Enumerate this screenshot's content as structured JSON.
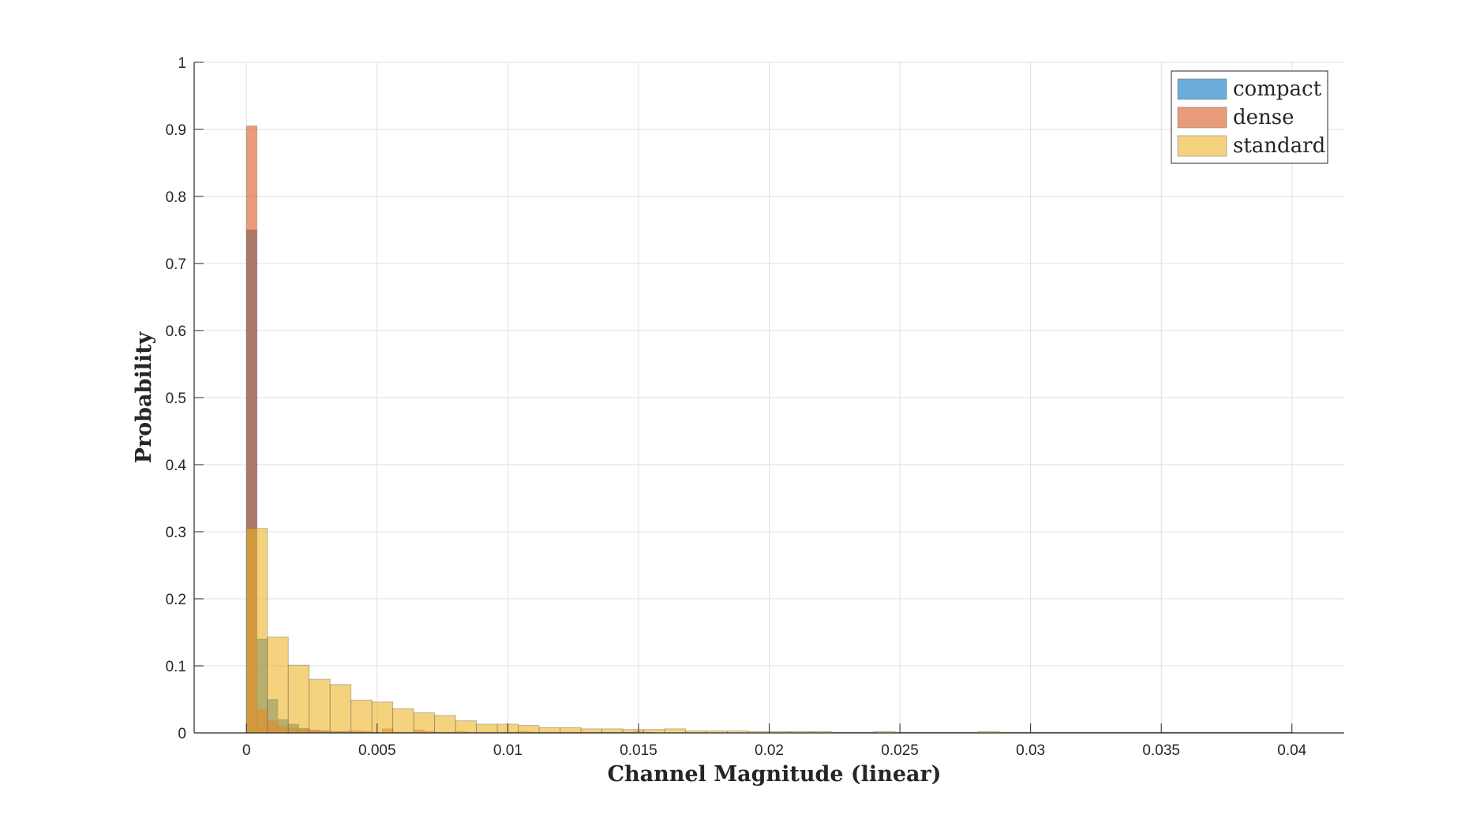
{
  "chart_data": {
    "type": "bar",
    "title": "",
    "xlabel": "Channel Magnitude (linear)",
    "ylabel": "Probability",
    "xlim": [
      -0.002,
      0.042
    ],
    "ylim": [
      0,
      1
    ],
    "xticks": [
      0,
      0.005,
      0.01,
      0.015,
      0.02,
      0.025,
      0.03,
      0.035,
      0.04
    ],
    "xtick_labels": [
      "0",
      "0.005",
      "0.01",
      "0.015",
      "0.02",
      "0.025",
      "0.03",
      "0.035",
      "0.04"
    ],
    "yticks": [
      0,
      0.1,
      0.2,
      0.3,
      0.4,
      0.5,
      0.6,
      0.7,
      0.8,
      0.9,
      1
    ],
    "ytick_labels": [
      "0",
      "0.1",
      "0.2",
      "0.3",
      "0.4",
      "0.5",
      "0.6",
      "0.7",
      "0.8",
      "0.9",
      "1"
    ],
    "grid": true,
    "legend_position": "top-right",
    "series": [
      {
        "name": "compact",
        "color": "#0072BD",
        "bin_width": 0.0004,
        "bin_start": 0,
        "values": [
          0.75,
          0.14,
          0.05,
          0.02,
          0.013,
          0.007,
          0.004,
          0.003,
          0.002,
          0.002,
          0.001,
          0.001
        ]
      },
      {
        "name": "dense",
        "color": "#D95319",
        "bin_width": 0.0004,
        "bin_start": 0,
        "values": [
          0.905,
          0.035,
          0.018,
          0.01,
          0.007,
          0.005,
          0.004,
          0.003,
          0.002,
          0.002,
          0.003,
          0.002,
          0.001,
          0.006,
          0.001,
          0.001,
          0.004,
          0.002,
          0.001,
          0.001,
          0.002,
          0.001,
          0.001,
          0.001,
          0.001,
          0.001,
          0.002,
          0.001,
          0.001,
          0.001,
          0.001,
          0.001,
          0.001,
          0.001,
          0.001,
          0.001,
          0.001,
          0.002,
          0.001
        ]
      },
      {
        "name": "standard",
        "color": "#EDB120",
        "bin_width": 0.0008,
        "bin_start": 0,
        "values": [
          0.305,
          0.143,
          0.101,
          0.08,
          0.072,
          0.049,
          0.046,
          0.036,
          0.03,
          0.026,
          0.018,
          0.013,
          0.013,
          0.011,
          0.008,
          0.008,
          0.006,
          0.006,
          0.005,
          0.005,
          0.006,
          0.003,
          0.003,
          0.003,
          0.002,
          0.002,
          0.002,
          0.002,
          0.001,
          0.001,
          0.002,
          0.001,
          0.001,
          0.001,
          0.001,
          0.002,
          0.001,
          0.001,
          0.001,
          0.001,
          0.001,
          0.001,
          0.001,
          0.001,
          0.001,
          0.001,
          0.001,
          0.001,
          0.001,
          0.001
        ]
      }
    ]
  }
}
